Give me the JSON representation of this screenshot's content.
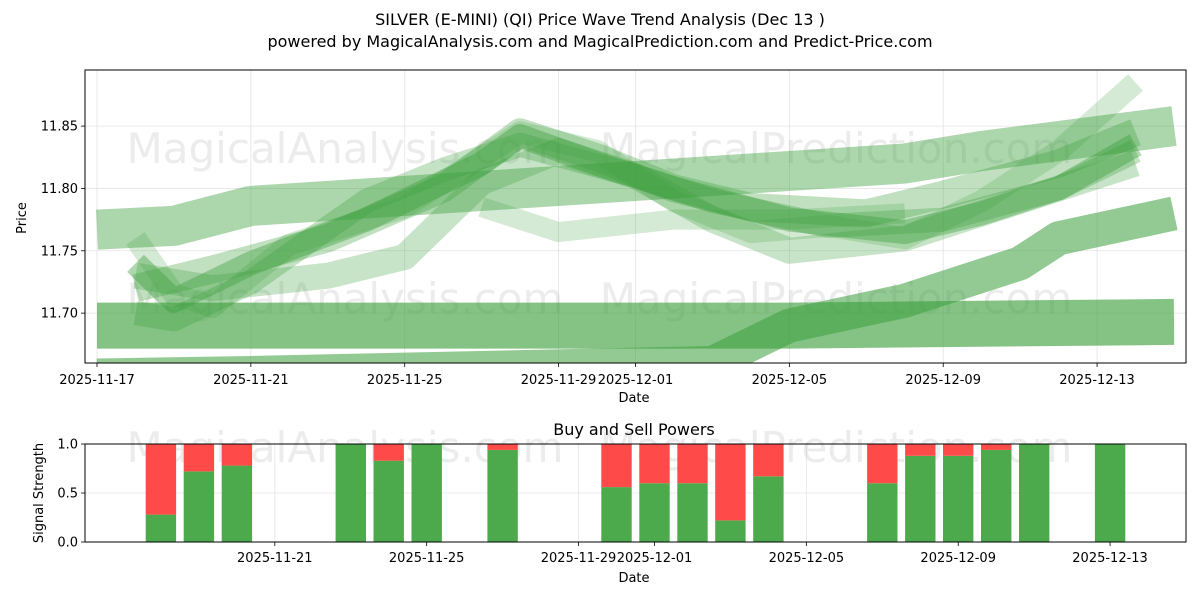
{
  "chart_data": [
    {
      "type": "area",
      "title": "SILVER (E-MINI) (QI) Price Wave Trend Analysis (Dec 13 )",
      "subtitle": "powered by MagicalAnalysis.com and MagicalPrediction.com and Predict-Price.com",
      "xlabel": "Date",
      "ylabel": "Price",
      "xlim": [
        "2025-11-17",
        "2025-12-15"
      ],
      "ylim": [
        11.66,
        11.895
      ],
      "x_ticks": [
        "2025-11-17",
        "2025-11-21",
        "2025-11-25",
        "2025-11-29",
        "2025-12-01",
        "2025-12-05",
        "2025-12-09",
        "2025-12-13"
      ],
      "y_ticks": [
        "11.70",
        "11.75",
        "11.80",
        "11.85"
      ],
      "grid": true,
      "color": "#3a9e3a",
      "bands": [
        {
          "name": "band-1",
          "points": [
            [
              "2025-11-17",
              11.767
            ],
            [
              "2025-11-19",
              11.77
            ],
            [
              "2025-11-21",
              11.786
            ],
            [
              "2025-12-08",
              11.82
            ],
            [
              "2025-12-10",
              11.83
            ],
            [
              "2025-12-15",
              11.85
            ]
          ]
        },
        {
          "name": "band-2",
          "points": [
            [
              "2025-11-17",
              11.69
            ],
            [
              "2025-11-21",
              11.69
            ],
            [
              "2025-12-05",
              11.69
            ],
            [
              "2025-12-15",
              11.693
            ]
          ]
        },
        {
          "name": "band-3",
          "points": [
            [
              "2025-11-17",
              11.65
            ],
            [
              "2025-11-21",
              11.652
            ],
            [
              "2025-12-03",
              11.66
            ],
            [
              "2025-12-05",
              11.69
            ],
            [
              "2025-12-08",
              11.71
            ],
            [
              "2025-12-11",
              11.74
            ],
            [
              "2025-12-12",
              11.76
            ],
            [
              "2025-12-15",
              11.78
            ]
          ]
        },
        {
          "name": "band-4",
          "points": [
            [
              "2025-11-18",
              11.74
            ],
            [
              "2025-11-19",
              11.71
            ],
            [
              "2025-11-21",
              11.74
            ],
            [
              "2025-11-24",
              11.775
            ],
            [
              "2025-11-27",
              11.82
            ],
            [
              "2025-11-28",
              11.842
            ],
            [
              "2025-11-30",
              11.82
            ],
            [
              "2025-12-02",
              11.8
            ],
            [
              "2025-12-05",
              11.775
            ],
            [
              "2025-12-08",
              11.765
            ],
            [
              "2025-12-10",
              11.78
            ],
            [
              "2025-12-12",
              11.8
            ],
            [
              "2025-12-14",
              11.835
            ]
          ]
        },
        {
          "name": "band-5",
          "points": [
            [
              "2025-11-18",
              11.76
            ],
            [
              "2025-11-19",
              11.715
            ],
            [
              "2025-11-20",
              11.705
            ],
            [
              "2025-11-22",
              11.755
            ],
            [
              "2025-11-25",
              11.785
            ],
            [
              "2025-11-28",
              11.845
            ],
            [
              "2025-11-30",
              11.83
            ],
            [
              "2025-12-02",
              11.79
            ],
            [
              "2025-12-04",
              11.765
            ],
            [
              "2025-12-06",
              11.77
            ],
            [
              "2025-12-08",
              11.76
            ],
            [
              "2025-12-10",
              11.79
            ],
            [
              "2025-12-12",
              11.83
            ],
            [
              "2025-12-14",
              11.885
            ]
          ]
        },
        {
          "name": "band-6",
          "points": [
            [
              "2025-11-18",
              11.73
            ],
            [
              "2025-11-20",
              11.72
            ],
            [
              "2025-11-23",
              11.73
            ],
            [
              "2025-11-25",
              11.745
            ],
            [
              "2025-11-27",
              11.805
            ],
            [
              "2025-11-29",
              11.83
            ],
            [
              "2025-12-01",
              11.81
            ],
            [
              "2025-12-03",
              11.775
            ],
            [
              "2025-12-05",
              11.75
            ],
            [
              "2025-12-08",
              11.76
            ],
            [
              "2025-12-11",
              11.79
            ],
            [
              "2025-12-14",
              11.82
            ]
          ]
        },
        {
          "name": "band-7",
          "points": [
            [
              "2025-11-18",
              11.72
            ],
            [
              "2025-11-20",
              11.735
            ],
            [
              "2025-11-23",
              11.76
            ],
            [
              "2025-11-26",
              11.8
            ],
            [
              "2025-11-28",
              11.845
            ],
            [
              "2025-11-30",
              11.825
            ],
            [
              "2025-12-02",
              11.8
            ],
            [
              "2025-12-04",
              11.785
            ],
            [
              "2025-12-07",
              11.78
            ],
            [
              "2025-12-09",
              11.795
            ],
            [
              "2025-12-12",
              11.82
            ],
            [
              "2025-12-14",
              11.845
            ]
          ]
        },
        {
          "name": "band-8",
          "points": [
            [
              "2025-11-27",
              11.785
            ],
            [
              "2025-11-29",
              11.765
            ],
            [
              "2025-12-02",
              11.775
            ],
            [
              "2025-12-05",
              11.775
            ],
            [
              "2025-12-08",
              11.78
            ]
          ]
        },
        {
          "name": "band-9",
          "points": [
            [
              "2025-11-18",
              11.7
            ],
            [
              "2025-11-19",
              11.695
            ],
            [
              "2025-11-21",
              11.725
            ],
            [
              "2025-11-24",
              11.79
            ],
            [
              "2025-11-26",
              11.815
            ],
            [
              "2025-11-28",
              11.835
            ],
            [
              "2025-12-01",
              11.81
            ],
            [
              "2025-12-03",
              11.79
            ],
            [
              "2025-12-06",
              11.77
            ],
            [
              "2025-12-09",
              11.775
            ],
            [
              "2025-12-12",
              11.8
            ],
            [
              "2025-12-14",
              11.83
            ]
          ]
        }
      ],
      "watermarks": [
        "MagicalAnalysis.com",
        "MagicalPrediction.com"
      ]
    },
    {
      "type": "bar",
      "title": "Buy and Sell Powers",
      "xlabel": "Date",
      "ylabel": "Signal Strength",
      "xlim": [
        "2025-11-16",
        "2025-12-15"
      ],
      "ylim": [
        0.0,
        1.0
      ],
      "x_ticks": [
        "2025-11-21",
        "2025-11-25",
        "2025-11-29",
        "2025-12-01",
        "2025-12-05",
        "2025-12-09",
        "2025-12-13"
      ],
      "y_ticks": [
        "0.0",
        "0.5",
        "1.0"
      ],
      "grid": true,
      "series": [
        {
          "name": "Buy",
          "color": "#4caa4c"
        },
        {
          "name": "Sell",
          "color": "#ff4a4a"
        }
      ],
      "bars": [
        {
          "date": "2025-11-18",
          "buy": 0.28
        },
        {
          "date": "2025-11-19",
          "buy": 0.72
        },
        {
          "date": "2025-11-20",
          "buy": 0.78
        },
        {
          "date": "2025-11-23",
          "buy": 1.0
        },
        {
          "date": "2025-11-24",
          "buy": 0.83
        },
        {
          "date": "2025-11-25",
          "buy": 1.0
        },
        {
          "date": "2025-11-27",
          "buy": 0.94
        },
        {
          "date": "2025-11-30",
          "buy": 0.56
        },
        {
          "date": "2025-12-01",
          "buy": 0.6
        },
        {
          "date": "2025-12-02",
          "buy": 0.6
        },
        {
          "date": "2025-12-03",
          "buy": 0.22
        },
        {
          "date": "2025-12-04",
          "buy": 0.67
        },
        {
          "date": "2025-12-07",
          "buy": 0.6
        },
        {
          "date": "2025-12-08",
          "buy": 0.88
        },
        {
          "date": "2025-12-09",
          "buy": 0.88
        },
        {
          "date": "2025-12-10",
          "buy": 0.94
        },
        {
          "date": "2025-12-11",
          "buy": 1.0
        },
        {
          "date": "2025-12-13",
          "buy": 1.0
        }
      ],
      "watermarks": [
        "MagicalAnalysis.com",
        "MagicalPrediction.com"
      ]
    }
  ]
}
